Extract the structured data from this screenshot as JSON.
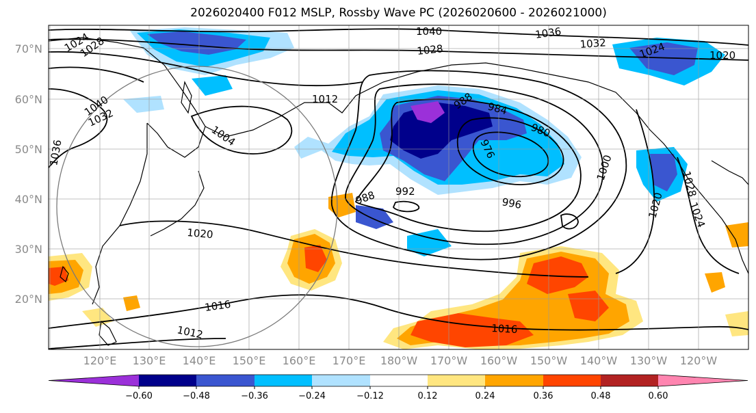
{
  "title": "2026020400 F012 MSLP, Rossby Wave PC (2026020600 - 2026021000)",
  "latitude_labels": [
    "70°N",
    "60°N",
    "50°N",
    "40°N",
    "30°N",
    "20°N"
  ],
  "longitude_labels": [
    "120°E",
    "130°E",
    "140°E",
    "150°E",
    "160°E",
    "170°E",
    "180°W",
    "170°W",
    "160°W",
    "150°W",
    "140°W",
    "130°W",
    "120°W"
  ],
  "isobar_labels": [
    "1040",
    "1036",
    "1032",
    "1028",
    "1024",
    "1028",
    "1024",
    "1020",
    "1040",
    "1032",
    "1036",
    "1012",
    "1004",
    "988",
    "984",
    "980",
    "976",
    "1000",
    "992",
    "988",
    "996",
    "1020",
    "1020",
    "1028",
    "1024",
    "1016",
    "1012",
    "1016"
  ],
  "colorbar": {
    "tick_labels": [
      "−0.60",
      "−0.48",
      "−0.36",
      "−0.24",
      "−0.12",
      "0.12",
      "0.24",
      "0.36",
      "0.48",
      "0.60"
    ],
    "colors": [
      "#9b30d9",
      "#00008b",
      "#3a56d0",
      "#00bfff",
      "#b0e2ff",
      "#ffffff",
      "#ffe680",
      "#ffa500",
      "#ff4500",
      "#b22222",
      "#ff85b0"
    ]
  },
  "field_colors": {
    "neg_deep": "#00008b",
    "neg_mid": "#3a56d0",
    "neg_light": "#00bfff",
    "neg_faint": "#b0e2ff",
    "pos_faint": "#ffe680",
    "pos_mid": "#ffa500",
    "pos_strong": "#ff4500",
    "pos_deep": "#b22222"
  }
}
